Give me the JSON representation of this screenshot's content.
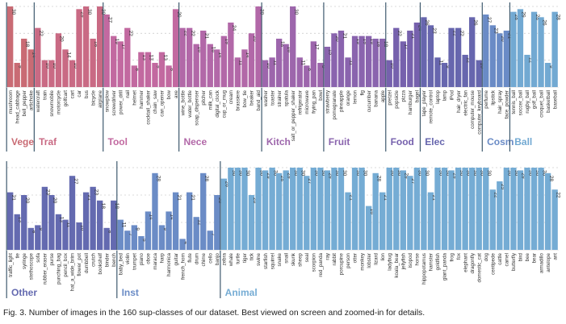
{
  "caption": "Fig. 3. Number of images in the 160 sup-classes of our dataset. Best viewed on screen and zoomed-in for details.",
  "chart_data": {
    "type": "bar",
    "title": "Number of images in the 160 sup-classes",
    "xlabel": "",
    "ylabel": "",
    "ylim": [
      0,
      30
    ],
    "grid": true,
    "gridlines": [
      10,
      20,
      30
    ],
    "rows": [
      {
        "groups": [
          {
            "name": "Vege",
            "color": "#c96b74",
            "categories": [
              "mushroom",
              "head_cabbage",
              "bell_pepper",
              "artichoke"
            ],
            "values": [
              30,
              9,
              18,
              14
            ]
          },
          {
            "name": "Traf",
            "color": "#c96a84",
            "categories": [
              "watercraft",
              "train",
              "snowmobile",
              "motorcycle",
              "golfcart",
              "cart",
              "car",
              "bus",
              "bicycle",
              "airplane"
            ],
            "values": [
              22,
              10,
              10,
              20,
              14,
              10,
              29,
              30,
              18,
              30
            ]
          },
          {
            "name": "Tool",
            "color": "#c269a0",
            "categories": [
              "snowplow",
              "screwdriver",
              "power_drill",
              "nail",
              "helmet",
              "hammer",
              "cocktail_shaker",
              "chain_saw",
              "can_opener",
              "bow",
              "axe"
            ],
            "values": [
              27,
              19,
              17,
              22,
              8,
              13,
              13,
              9,
              13,
              8,
              29
            ]
          },
          {
            "name": "Nece",
            "color": "#b268a8",
            "categories": [
              "wine_bottle",
              "water_bottle",
              "soap_dispenser",
              "pitcher",
              "milk_can",
              "digital_clock",
              "cup_or_mug",
              "cream",
              "brassiere",
              "bow_tie",
              "beaker",
              "band_aid"
            ],
            "values": [
              22,
              22,
              16,
              21,
              16,
              14,
              19,
              24,
              11,
              14,
              20,
              30
            ]
          },
          {
            "name": "Kitch",
            "color": "#9d66ac",
            "categories": [
              "washer",
              "toaster",
              "strainer",
              "spatula",
              "salt_or_pepper_shaker",
              "refrigerator",
              "microwave",
              "frying_pan",
              "bowl"
            ],
            "values": [
              10,
              11,
              18,
              16,
              30,
              11,
              8,
              17,
              9
            ]
          },
          {
            "name": "Fruit",
            "color": "#8a64ae",
            "categories": [
              "strawberry",
              "pomegranate",
              "pineapple",
              "orange",
              "lemon",
              "fig",
              "cucumber",
              "banana",
              "apple"
            ],
            "values": [
              15,
              20,
              21,
              11,
              19,
              19,
              19,
              18,
              18
            ]
          },
          {
            "name": "Food",
            "color": "#7661ad",
            "categories": [
              "pretzel",
              "popsicle",
              "pizza",
              "hamburger",
              "bagel"
            ],
            "values": [
              10,
              22,
              17,
              21,
              24
            ]
          },
          {
            "name": "Elec",
            "color": "#6766ae",
            "categories": [
              "tape_player",
              "remote_control",
              "laptop",
              "lamp",
              "iPod",
              "hair_dryer",
              "electric_fan",
              "computer_mouse",
              "computer_keyboard"
            ],
            "values": [
              26,
              23,
              11,
              9,
              22,
              22,
              12,
              26,
              10
            ]
          },
          {
            "name": "Cosm",
            "color": "#6a8bc6",
            "categories": [
              "perfume",
              "lipstick",
              "hair_spray",
              "face_powder"
            ],
            "values": [
              27,
              23,
              20,
              21
            ]
          },
          {
            "name": "Ball",
            "color": "#72a9d2",
            "categories": [
              "tennis_ball",
              "soccer_ball",
              "rugby_ball",
              "golf_ball",
              "croquet_ball",
              "basketball",
              "baseball"
            ],
            "values": [
              28,
              29,
              12,
              28,
              26,
              9,
              28
            ]
          }
        ]
      },
      {
        "groups": [
          {
            "name": "Other",
            "color": "#646ab0",
            "categories": [
              "traffic_light",
              "tie",
              "syringe",
              "stethoscope",
              "sofa",
              "rubber_eraser",
              "purse",
              "punching_bag",
              "pencil_box",
              "hat_a_wide_brim",
              "flower_pot",
              "dumbbell",
              "crutch",
              "bookshelf",
              "binder",
              "bench"
            ],
            "values": [
              21,
              13,
              20,
              8,
              9,
              23,
              20,
              13,
              11,
              27,
              10,
              21,
              23,
              18,
              8,
              18
            ]
          },
          {
            "name": "Inst",
            "color": "#6b8cc6",
            "categories": [
              "baby_bed",
              "violin",
              "trumpet",
              "piano",
              "oboe",
              "maraca",
              "harp",
              "harmonica",
              "guitar",
              "french_horn",
              "flute",
              "drum",
              "chime",
              "cello",
              "banjo"
            ],
            "values": [
              11,
              7,
              9,
              5,
              14,
              28,
              9,
              14,
              21,
              4,
              21,
              12,
              28,
              7,
              20
            ]
          },
          {
            "name": "Animal",
            "color": "#75acd4",
            "categories": [
              "zebra",
              "whale",
              "turtle",
              "tiger",
              "tick",
              "swine",
              "starfish",
              "squirrel",
              "snake",
              "snail",
              "skunk",
              "sheep",
              "seal",
              "scorpion",
              "red_panda",
              "ray",
              "rabbit",
              "porcupine",
              "person",
              "otter",
              "monkey",
              "lobster",
              "lizard",
              "lion",
              "ladybug",
              "koala_bear",
              "jellyfish",
              "isopod",
              "horse",
              "hippopotamus",
              "hamster",
              "goldfish",
              "giant_panda",
              "frog",
              "fox",
              "elephant",
              "dragonfly",
              "domestic_cat",
              "dog",
              "centipede",
              "cattle",
              "camel",
              "butterfly",
              "bird",
              "bee",
              "bear",
              "armadillo",
              "antelope",
              "ant"
            ],
            "values": [
              26,
              30,
              30,
              30,
              20,
              30,
              29,
              30,
              28,
              29,
              30,
              30,
              27,
              30,
              30,
              29,
              30,
              30,
              21,
              30,
              30,
              16,
              28,
              21,
              30,
              30,
              29,
              27,
              30,
              30,
              21,
              30,
              30,
              29,
              30,
              30,
              30,
              30,
              30,
              22,
              25,
              30,
              30,
              29,
              30,
              30,
              30,
              28,
              22
            ]
          }
        ]
      }
    ]
  }
}
